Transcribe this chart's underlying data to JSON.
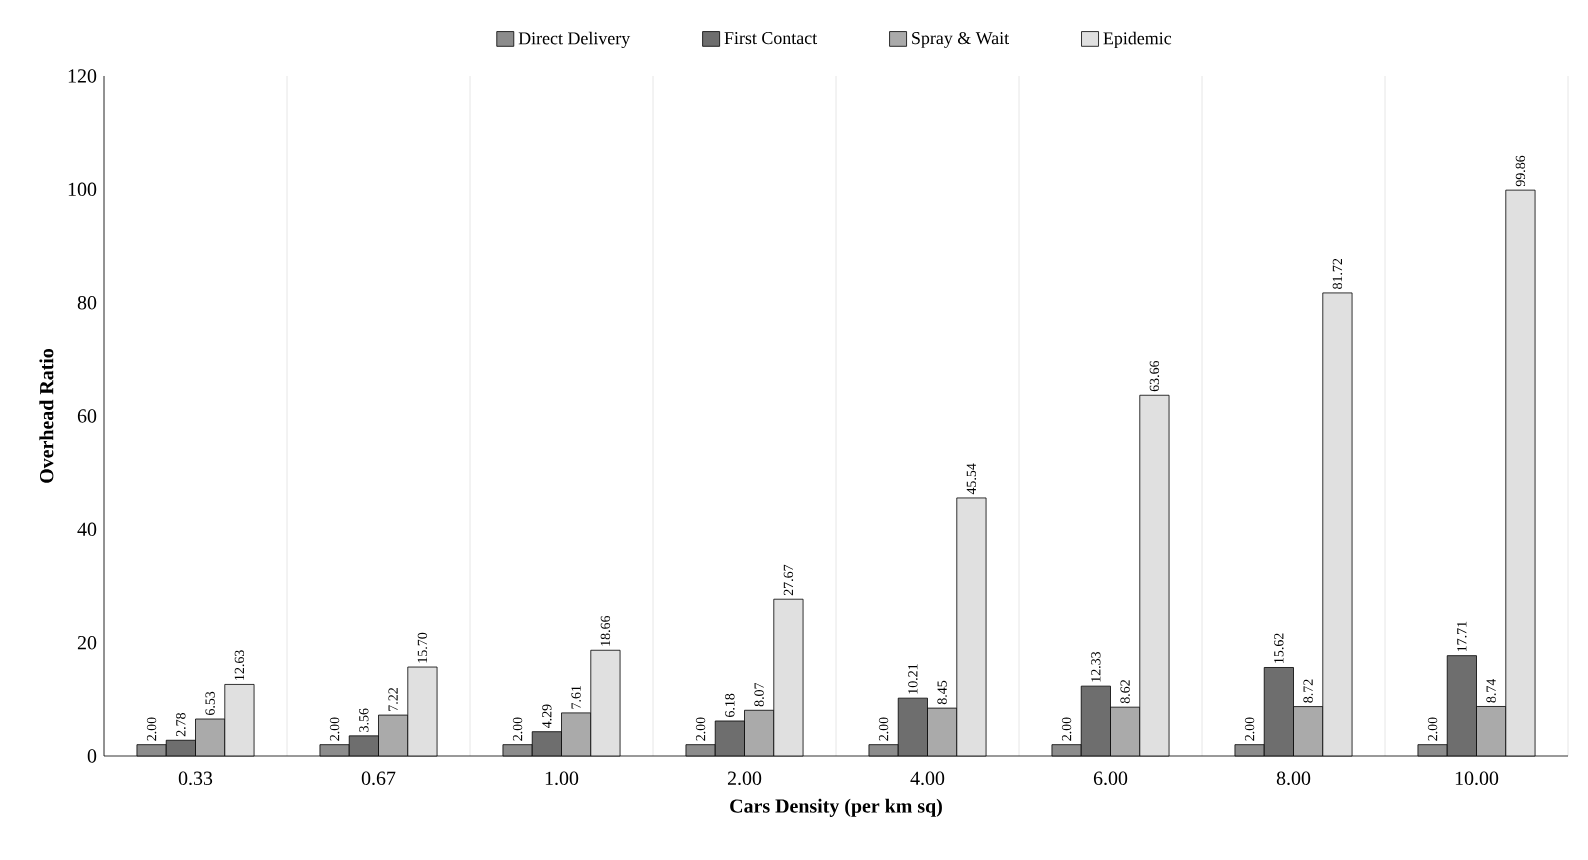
{
  "chart_data": {
    "type": "bar",
    "xlabel": "Cars Density (per km sq)",
    "ylabel": "Overhead Ratio",
    "categories": [
      "0.33",
      "0.67",
      "1.00",
      "2.00",
      "4.00",
      "6.00",
      "8.00",
      "10.00"
    ],
    "series": [
      {
        "name": "Direct Delivery",
        "color": "#8c8c8c",
        "values": [
          2.0,
          2.0,
          2.0,
          2.0,
          2.0,
          2.0,
          2.0,
          2.0
        ],
        "value_labels": [
          "2.00",
          "2.00",
          "2.00",
          "2.00",
          "2.00",
          "2.00",
          "2.00",
          "2.00"
        ]
      },
      {
        "name": "First Contact",
        "color": "#6e6e6e",
        "values": [
          2.78,
          3.56,
          4.29,
          6.18,
          10.21,
          12.33,
          15.62,
          17.71
        ],
        "value_labels": [
          "2.78",
          "3.56",
          "4.29",
          "6.18",
          "10.21",
          "12.33",
          "15.62",
          "17.71"
        ]
      },
      {
        "name": "Spray & Wait",
        "color": "#aaaaaa",
        "values": [
          6.53,
          7.22,
          7.61,
          8.07,
          8.45,
          8.62,
          8.72,
          8.74
        ],
        "value_labels": [
          "6.53",
          "7.22",
          "7.61",
          "8.07",
          "8.45",
          "8.62",
          "8.72",
          "8.74"
        ]
      },
      {
        "name": "Epidemic",
        "color": "#e0e0e0",
        "values": [
          12.63,
          15.7,
          18.66,
          27.67,
          45.54,
          63.66,
          81.72,
          99.86
        ],
        "value_labels": [
          "12.63",
          "15.70",
          "18.66",
          "27.67",
          "45.54",
          "63.66",
          "81.72",
          "99.86"
        ]
      }
    ],
    "ylim": [
      0,
      120
    ],
    "yticks": [
      0,
      20,
      40,
      60,
      80,
      100,
      120
    ],
    "grid": "x",
    "legend": "top"
  }
}
